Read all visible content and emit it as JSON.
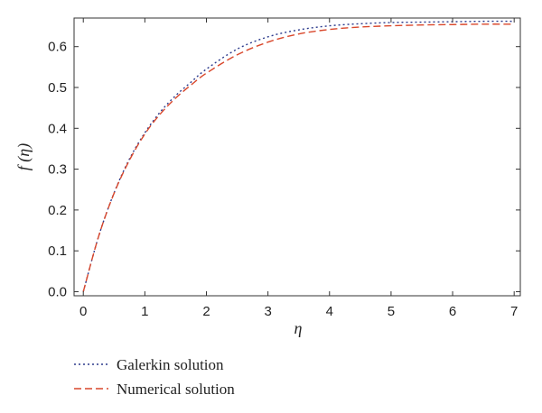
{
  "chart_data": {
    "type": "line",
    "xlabel": "η",
    "ylabel": "f (η)",
    "xlim": [
      -0.15,
      7.1
    ],
    "ylim": [
      -0.01,
      0.67
    ],
    "xticks": [
      0,
      1,
      2,
      3,
      4,
      5,
      6,
      7
    ],
    "yticks": [
      0.0,
      0.1,
      0.2,
      0.3,
      0.4,
      0.5,
      0.6
    ],
    "grid": false,
    "legend_position": "bottom-left, below plot",
    "series": [
      {
        "name": "Galerkin solution",
        "style": "dotted",
        "color": "#2b3a8c",
        "x": [
          0,
          0.25,
          0.5,
          0.75,
          1,
          1.25,
          1.5,
          1.75,
          2,
          2.5,
          3,
          3.5,
          4,
          4.5,
          5,
          5.5,
          6,
          6.5,
          7
        ],
        "y": [
          0.0,
          0.136,
          0.242,
          0.325,
          0.389,
          0.44,
          0.48,
          0.513,
          0.545,
          0.594,
          0.624,
          0.641,
          0.651,
          0.656,
          0.659,
          0.66,
          0.661,
          0.662,
          0.662
        ]
      },
      {
        "name": "Numerical solution",
        "style": "dashed",
        "color": "#d9472b",
        "x": [
          0,
          0.25,
          0.5,
          0.75,
          1,
          1.25,
          1.5,
          1.75,
          2,
          2.5,
          3,
          3.5,
          4,
          4.5,
          5,
          5.5,
          6,
          6.5,
          7
        ],
        "y": [
          0.0,
          0.136,
          0.241,
          0.322,
          0.386,
          0.435,
          0.474,
          0.506,
          0.535,
          0.58,
          0.611,
          0.631,
          0.642,
          0.648,
          0.651,
          0.653,
          0.654,
          0.655,
          0.655
        ]
      }
    ]
  }
}
